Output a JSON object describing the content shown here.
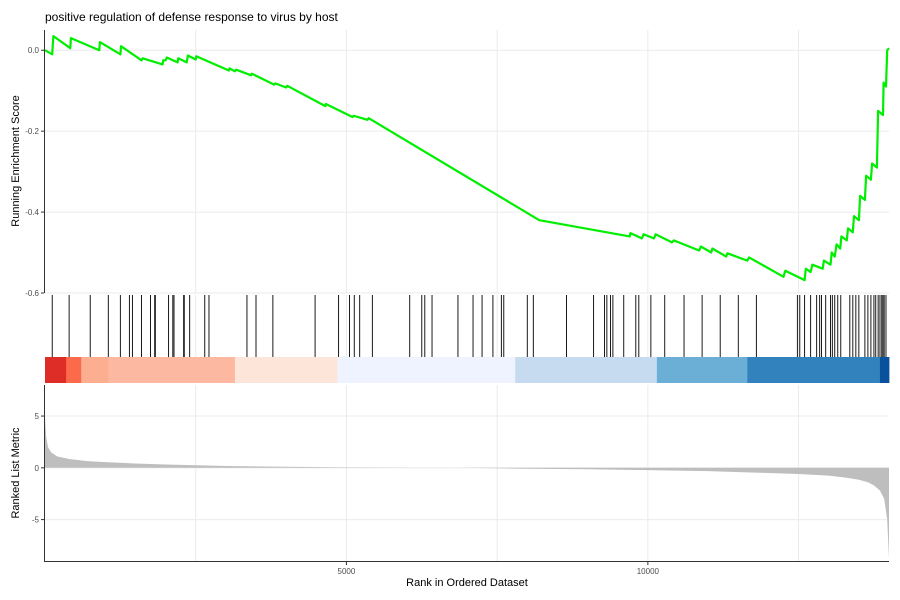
{
  "chart_data": [
    {
      "type": "line",
      "panel": "running-enrichment-score",
      "title": "positive regulation of defense response to virus by host",
      "xlabel": "",
      "ylabel": "Running Enrichment Score",
      "xlim": [
        0,
        14000
      ],
      "ylim": [
        -0.6,
        0.05
      ],
      "yticks": [
        "0.0",
        "-0.2",
        "-0.4",
        "-0.6"
      ],
      "xticks": [],
      "grid": true,
      "line_color": "#00ee00",
      "series": [
        {
          "x": [
            0,
            120,
            140,
            420,
            430,
            900,
            910,
            1250,
            1260,
            1600,
            1620,
            1950,
            1960,
            2000,
            2020,
            2200,
            2210,
            2350,
            2370,
            2500,
            2510,
            3050,
            3060,
            3150,
            3170,
            3420,
            3430,
            3800,
            3820,
            4000,
            4020,
            4650,
            4660,
            5100,
            5120,
            5350,
            5370,
            8200,
            9700,
            9710,
            9900,
            9930,
            10100,
            10130,
            10400,
            10430,
            10850,
            10880,
            11050,
            11070,
            11300,
            11320,
            11650,
            11680,
            12250,
            12280,
            12600,
            12620,
            12700,
            12730,
            12900,
            12920,
            13030,
            13050,
            13100,
            13130,
            13190,
            13210,
            13300,
            13320,
            13400,
            13420,
            13500,
            13520,
            13600,
            13620,
            13700,
            13720,
            13800,
            13820,
            13900,
            13910,
            13950,
            13970,
            14000
          ],
          "y": [
            0.0,
            -0.01,
            0.035,
            0.005,
            0.03,
            0.0,
            0.02,
            -0.01,
            0.01,
            -0.025,
            -0.02,
            -0.035,
            -0.025,
            -0.025,
            -0.018,
            -0.03,
            -0.02,
            -0.03,
            -0.013,
            -0.023,
            -0.015,
            -0.05,
            -0.045,
            -0.052,
            -0.048,
            -0.062,
            -0.058,
            -0.085,
            -0.082,
            -0.092,
            -0.088,
            -0.138,
            -0.133,
            -0.165,
            -0.162,
            -0.172,
            -0.168,
            -0.42,
            -0.46,
            -0.452,
            -0.465,
            -0.455,
            -0.465,
            -0.455,
            -0.475,
            -0.47,
            -0.495,
            -0.485,
            -0.5,
            -0.49,
            -0.51,
            -0.502,
            -0.52,
            -0.512,
            -0.56,
            -0.545,
            -0.568,
            -0.54,
            -0.548,
            -0.53,
            -0.54,
            -0.52,
            -0.53,
            -0.5,
            -0.51,
            -0.48,
            -0.49,
            -0.46,
            -0.47,
            -0.44,
            -0.45,
            -0.41,
            -0.42,
            -0.36,
            -0.37,
            -0.31,
            -0.32,
            -0.28,
            -0.29,
            -0.15,
            -0.16,
            -0.08,
            -0.09,
            0.0,
            0.005
          ]
        }
      ]
    },
    {
      "type": "rug",
      "panel": "gene-hit-positions",
      "x": [
        120,
        400,
        750,
        1050,
        1250,
        1400,
        1450,
        1600,
        1750,
        1820,
        1830,
        2050,
        2120,
        2140,
        2300,
        2310,
        2400,
        2650,
        2720,
        3350,
        3500,
        3780,
        4480,
        4870,
        5050,
        5130,
        5220,
        5430,
        6050,
        6250,
        6300,
        6420,
        6850,
        7100,
        7250,
        7430,
        7570,
        7610,
        8000,
        8100,
        8650,
        9100,
        9280,
        9320,
        9380,
        9420,
        9600,
        9800,
        9850,
        10050,
        10280,
        10600,
        10900,
        11200,
        11500,
        11800,
        12480,
        12520,
        12600,
        12700,
        12800,
        12850,
        12880,
        12950,
        13030,
        13060,
        13100,
        13150,
        13200,
        13350,
        13400,
        13450,
        13500,
        13600,
        13650,
        13700,
        13750,
        13780,
        13820,
        13850,
        13880,
        13900,
        13920,
        13950
      ]
    },
    {
      "type": "heatmap",
      "panel": "rank-color-bar",
      "x": [
        0,
        350,
        600,
        1050,
        3150,
        4850,
        7800,
        10150,
        11650,
        13850,
        14000
      ],
      "colors": [
        "#de2d26",
        "#fb6a4a",
        "#fcae91",
        "#fcb8a0",
        "#fee5d9",
        "#eff3ff",
        "#c6dbef",
        "#6baed6",
        "#3182bd",
        "#08519c"
      ]
    },
    {
      "type": "area",
      "panel": "ranked-list-metric",
      "xlabel": "Rank in Ordered Dataset",
      "ylabel": "Ranked List Metric",
      "xlim": [
        0,
        14000
      ],
      "ylim": [
        -9,
        8
      ],
      "xticks": [
        "5000",
        "10000"
      ],
      "yticks": [
        "5",
        "0",
        "-5"
      ],
      "fill_color": "#bebebe",
      "grid": true,
      "x": [
        0,
        20,
        50,
        100,
        200,
        400,
        700,
        1000,
        1500,
        2000,
        3000,
        4000,
        5000,
        6000,
        6800,
        7500,
        8000,
        9000,
        10000,
        11000,
        12000,
        12500,
        13000,
        13300,
        13500,
        13650,
        13750,
        13850,
        13920,
        13970,
        14000
      ],
      "y": [
        4.8,
        3.0,
        2.0,
        1.5,
        1.1,
        0.85,
        0.65,
        0.55,
        0.42,
        0.32,
        0.18,
        0.1,
        0.04,
        0.02,
        0.0,
        -0.05,
        -0.08,
        -0.14,
        -0.22,
        -0.32,
        -0.5,
        -0.6,
        -0.75,
        -0.95,
        -1.15,
        -1.4,
        -1.7,
        -2.2,
        -3.0,
        -5.0,
        -8.8
      ]
    }
  ]
}
